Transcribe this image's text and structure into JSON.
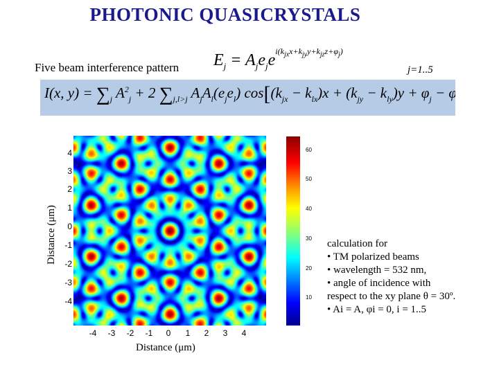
{
  "slide": {
    "title": "PHOTONIC QUASICRYSTALS",
    "subtitle": "Five beam interference pattern",
    "eq1_range": "j=1..5"
  },
  "plot": {
    "y_axis_label": "Distance (μm)",
    "x_axis_label": "Distance (μm)",
    "y_ticks": [
      "4",
      "3",
      "2",
      "1",
      "0",
      "-1",
      "-2",
      "-3",
      "-4"
    ],
    "x_ticks": [
      "-4",
      "-3",
      "-2",
      "-1",
      "0",
      "1",
      "2",
      "3",
      "4"
    ],
    "colorbar_ticks": [
      "60",
      "50",
      "40",
      "30",
      "20",
      "10"
    ],
    "colors": {
      "low": "#00008f",
      "mid": "#00ffff",
      "high": "#8b0000"
    }
  },
  "notes": {
    "line1": "calculation for",
    "line2": "• TM polarized beams",
    "line3": "• wavelength = 532 nm,",
    "line4": "• angle of incidence with",
    "line5": "respect to the xy plane θ = 30º.",
    "line6": "• Ai = A, φi = 0, i = 1..5"
  }
}
